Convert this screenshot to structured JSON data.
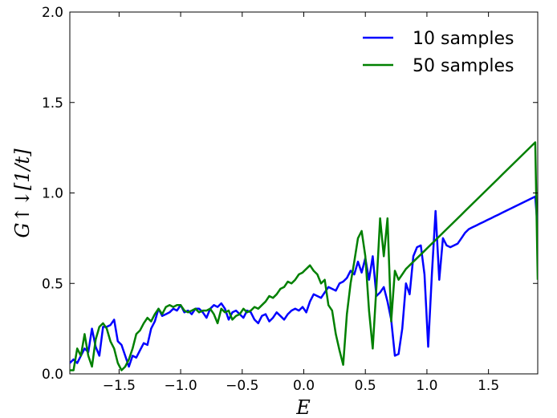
{
  "chart_data": {
    "type": "line",
    "xlabel": "E",
    "ylabel": "G↑↓[1/t]",
    "xlim": [
      -1.9,
      1.9
    ],
    "ylim": [
      0.0,
      2.0
    ],
    "xticks": [
      -1.5,
      -1.0,
      -0.5,
      0.0,
      0.5,
      1.0,
      1.5
    ],
    "xtick_labels": [
      "−1.5",
      "−1.0",
      "−0.5",
      "0.0",
      "0.5",
      "1.0",
      "1.5"
    ],
    "yticks": [
      0.0,
      0.5,
      1.0,
      1.5,
      2.0
    ],
    "ytick_labels": [
      "0.0",
      "0.5",
      "1.0",
      "1.5",
      "2.0"
    ],
    "grid": false,
    "legend_position": "top-right",
    "series": [
      {
        "name": "10 samples",
        "color": "#0000ff",
        "x": [
          -1.9,
          -1.87,
          -1.84,
          -1.81,
          -1.78,
          -1.75,
          -1.72,
          -1.69,
          -1.66,
          -1.63,
          -1.6,
          -1.57,
          -1.54,
          -1.51,
          -1.48,
          -1.45,
          -1.42,
          -1.39,
          -1.36,
          -1.33,
          -1.3,
          -1.27,
          -1.24,
          -1.21,
          -1.18,
          -1.15,
          -1.12,
          -1.09,
          -1.06,
          -1.03,
          -1.0,
          -0.97,
          -0.94,
          -0.91,
          -0.88,
          -0.85,
          -0.82,
          -0.79,
          -0.76,
          -0.73,
          -0.7,
          -0.67,
          -0.64,
          -0.61,
          -0.58,
          -0.55,
          -0.52,
          -0.49,
          -0.46,
          -0.43,
          -0.4,
          -0.37,
          -0.34,
          -0.31,
          -0.28,
          -0.25,
          -0.22,
          -0.19,
          -0.16,
          -0.13,
          -0.1,
          -0.07,
          -0.04,
          -0.01,
          0.02,
          0.05,
          0.08,
          0.11,
          0.14,
          0.17,
          0.2,
          0.23,
          0.26,
          0.29,
          0.32,
          0.35,
          0.38,
          0.41,
          0.44,
          0.47,
          0.5,
          0.53,
          0.56,
          0.59,
          0.62,
          0.65,
          0.68,
          0.71,
          0.74,
          0.77,
          0.8,
          0.83,
          0.86,
          0.89,
          0.92,
          0.95,
          0.98,
          1.01,
          1.04,
          1.07,
          1.1,
          1.13,
          1.16,
          1.19,
          1.22,
          1.25,
          1.28,
          1.31,
          1.34,
          1.37,
          1.4,
          1.43,
          1.46,
          1.49,
          1.52,
          1.55,
          1.58,
          1.61,
          1.64,
          1.67,
          1.7,
          1.73,
          1.76,
          1.79,
          1.82,
          1.85,
          1.88,
          1.9
        ],
        "y": [
          0.06,
          0.08,
          0.06,
          0.1,
          0.14,
          0.12,
          0.25,
          0.15,
          0.1,
          0.26,
          0.26,
          0.27,
          0.3,
          0.18,
          0.16,
          0.1,
          0.04,
          0.1,
          0.09,
          0.13,
          0.17,
          0.16,
          0.25,
          0.29,
          0.36,
          0.32,
          0.33,
          0.34,
          0.36,
          0.35,
          0.38,
          0.34,
          0.35,
          0.33,
          0.36,
          0.36,
          0.34,
          0.31,
          0.36,
          0.38,
          0.37,
          0.39,
          0.36,
          0.3,
          0.34,
          0.35,
          0.33,
          0.31,
          0.35,
          0.34,
          0.3,
          0.28,
          0.32,
          0.33,
          0.29,
          0.31,
          0.34,
          0.32,
          0.3,
          0.33,
          0.35,
          0.36,
          0.35,
          0.37,
          0.34,
          0.4,
          0.44,
          0.43,
          0.42,
          0.45,
          0.48,
          0.47,
          0.46,
          0.5,
          0.51,
          0.53,
          0.57,
          0.55,
          0.62,
          0.56,
          0.64,
          0.52,
          0.65,
          0.43,
          0.45,
          0.48,
          0.4,
          0.3,
          0.1,
          0.11,
          0.25,
          0.5,
          0.44,
          0.65,
          0.7,
          0.71,
          0.55,
          0.15,
          0.55,
          0.9,
          0.52,
          0.75,
          0.71,
          0.7,
          0.71,
          0.72,
          0.75,
          0.78,
          0.8,
          0.81,
          0.82,
          0.83,
          0.84,
          0.85,
          0.86,
          0.87,
          0.88,
          0.89,
          0.9,
          0.91,
          0.92,
          0.93,
          0.94,
          0.95,
          0.96,
          0.97,
          0.98,
          0.8
        ]
      },
      {
        "name": "50 samples",
        "color": "#008000",
        "x": [
          -1.9,
          -1.87,
          -1.84,
          -1.81,
          -1.78,
          -1.75,
          -1.72,
          -1.69,
          -1.66,
          -1.63,
          -1.6,
          -1.57,
          -1.54,
          -1.51,
          -1.48,
          -1.45,
          -1.42,
          -1.39,
          -1.36,
          -1.33,
          -1.3,
          -1.27,
          -1.24,
          -1.21,
          -1.18,
          -1.15,
          -1.12,
          -1.09,
          -1.06,
          -1.03,
          -1.0,
          -0.97,
          -0.94,
          -0.91,
          -0.88,
          -0.85,
          -0.82,
          -0.79,
          -0.76,
          -0.73,
          -0.7,
          -0.67,
          -0.64,
          -0.61,
          -0.58,
          -0.55,
          -0.52,
          -0.49,
          -0.46,
          -0.43,
          -0.4,
          -0.37,
          -0.34,
          -0.31,
          -0.28,
          -0.25,
          -0.22,
          -0.19,
          -0.16,
          -0.13,
          -0.1,
          -0.07,
          -0.04,
          -0.01,
          0.02,
          0.05,
          0.08,
          0.11,
          0.14,
          0.17,
          0.2,
          0.23,
          0.26,
          0.29,
          0.32,
          0.35,
          0.38,
          0.41,
          0.44,
          0.47,
          0.5,
          0.53,
          0.56,
          0.59,
          0.62,
          0.65,
          0.68,
          0.71,
          0.74,
          0.77,
          0.8,
          0.83,
          0.86,
          0.89,
          0.92,
          0.95,
          0.98,
          1.01,
          1.04,
          1.07,
          1.1,
          1.13,
          1.16,
          1.19,
          1.22,
          1.25,
          1.28,
          1.31,
          1.34,
          1.37,
          1.4,
          1.43,
          1.46,
          1.49,
          1.52,
          1.55,
          1.58,
          1.61,
          1.64,
          1.67,
          1.7,
          1.73,
          1.76,
          1.79,
          1.82,
          1.85,
          1.88,
          1.9
        ],
        "y": [
          0.02,
          0.02,
          0.14,
          0.1,
          0.22,
          0.1,
          0.04,
          0.19,
          0.26,
          0.28,
          0.25,
          0.18,
          0.14,
          0.06,
          0.02,
          0.04,
          0.08,
          0.14,
          0.22,
          0.24,
          0.28,
          0.31,
          0.29,
          0.33,
          0.36,
          0.33,
          0.37,
          0.38,
          0.37,
          0.38,
          0.38,
          0.35,
          0.34,
          0.35,
          0.36,
          0.34,
          0.35,
          0.35,
          0.36,
          0.33,
          0.28,
          0.36,
          0.34,
          0.35,
          0.3,
          0.32,
          0.33,
          0.36,
          0.34,
          0.35,
          0.37,
          0.36,
          0.38,
          0.4,
          0.43,
          0.42,
          0.44,
          0.47,
          0.48,
          0.51,
          0.5,
          0.52,
          0.55,
          0.56,
          0.58,
          0.6,
          0.57,
          0.55,
          0.5,
          0.52,
          0.38,
          0.35,
          0.22,
          0.13,
          0.05,
          0.33,
          0.5,
          0.62,
          0.75,
          0.79,
          0.65,
          0.35,
          0.14,
          0.48,
          0.86,
          0.65,
          0.86,
          0.29,
          0.57,
          0.52,
          0.55,
          0.58,
          0.6,
          0.62,
          0.64,
          0.66,
          0.68,
          0.7,
          0.72,
          0.74,
          0.76,
          0.78,
          0.8,
          0.82,
          0.84,
          0.86,
          0.88,
          0.9,
          0.92,
          0.94,
          0.96,
          0.98,
          1.0,
          1.02,
          1.04,
          1.06,
          1.08,
          1.1,
          1.12,
          1.14,
          1.16,
          1.18,
          1.2,
          1.22,
          1.24,
          1.26,
          1.28,
          0.52
        ]
      }
    ]
  }
}
